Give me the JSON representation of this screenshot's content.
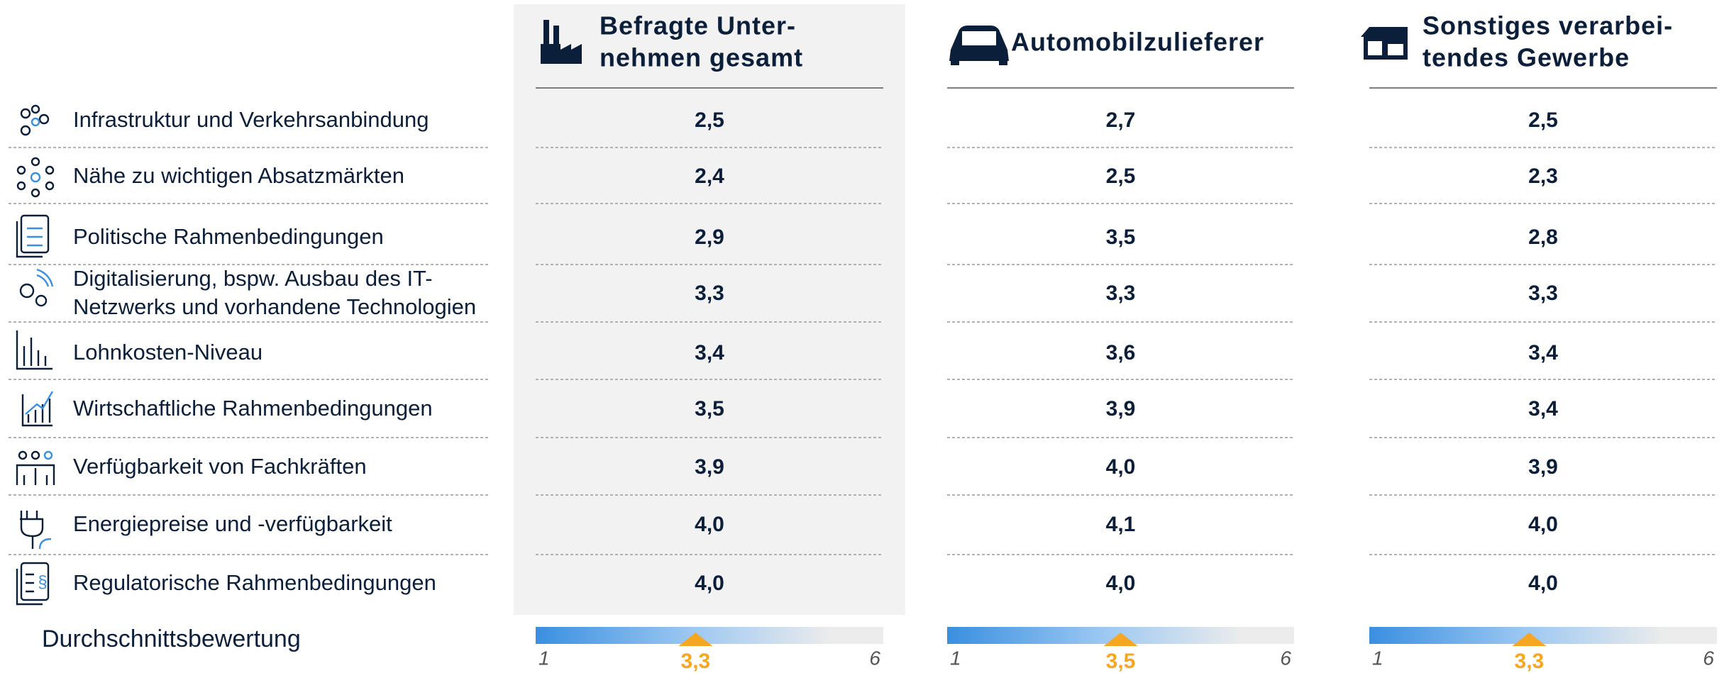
{
  "factors": [
    [
      "Infrastruktur und Verkehrsanbindung"
    ],
    [
      "Nähe zu wichtigen Absatzmärkten"
    ],
    [
      "Politische Rahmenbedingungen"
    ],
    [
      "Digitalisierung, bspw. Ausbau des IT-",
      "Netzwerks und vorhandene Technologien"
    ],
    [
      "Lohnkosten-Niveau"
    ],
    [
      "Wirtschaftliche Rahmenbedingungen"
    ],
    [
      "Verfügbarkeit von Fachkräften"
    ],
    [
      "Energiepreise und -verfügbarkeit"
    ],
    [
      "Regulatorische Rahmenbedingungen"
    ]
  ],
  "average_label": "Durchschnittsbewertung",
  "scale": {
    "min": 1,
    "max": 6
  },
  "columns": [
    {
      "title": [
        "Befragte Unter-",
        "nehmen gesamt"
      ],
      "values": [
        "2,5",
        "2,4",
        "2,9",
        "3,3",
        "3,4",
        "3,5",
        "3,9",
        "4,0",
        "4,0"
      ],
      "average": {
        "value": 3.3,
        "label": "3,3"
      }
    },
    {
      "title": [
        "Automobilzulieferer"
      ],
      "values": [
        "2,7",
        "2,5",
        "3,5",
        "3,3",
        "3,6",
        "3,9",
        "4,0",
        "4,1",
        "4,0"
      ],
      "average": {
        "value": 3.5,
        "label": "3,5"
      }
    },
    {
      "title": [
        "Sonstiges verarbei-",
        "tendes Gewerbe"
      ],
      "values": [
        "2,5",
        "2,3",
        "2,8",
        "3,3",
        "3,4",
        "3,4",
        "3,9",
        "4,0",
        "4,0"
      ],
      "average": {
        "value": 3.3,
        "label": "3,3"
      }
    }
  ]
}
